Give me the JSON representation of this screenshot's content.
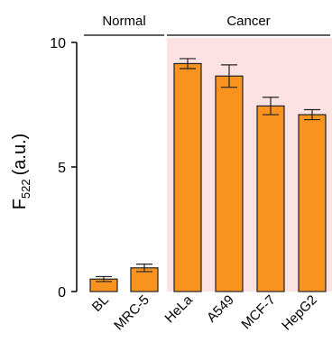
{
  "chart_data": {
    "type": "bar",
    "categories": [
      "BL",
      "MRC-5",
      "HeLa",
      "A549",
      "MCF-7",
      "HepG2"
    ],
    "values": [
      0.5,
      0.95,
      9.15,
      8.65,
      7.45,
      7.1
    ],
    "errors": [
      0.1,
      0.15,
      0.2,
      0.45,
      0.35,
      0.2
    ],
    "ylabel": {
      "main": "F",
      "sub": "522",
      "unit": "(a.u.)"
    },
    "yticks": [
      0,
      5,
      10
    ],
    "ylim": [
      0,
      10
    ],
    "groups": [
      {
        "label": "Normal",
        "start": 0,
        "end": 1
      },
      {
        "label": "Cancer",
        "start": 2,
        "end": 5
      }
    ],
    "colors": {
      "bar_fill": "#f7931e",
      "bar_stroke": "#222222",
      "highlight_region": "#fde2e4"
    }
  }
}
